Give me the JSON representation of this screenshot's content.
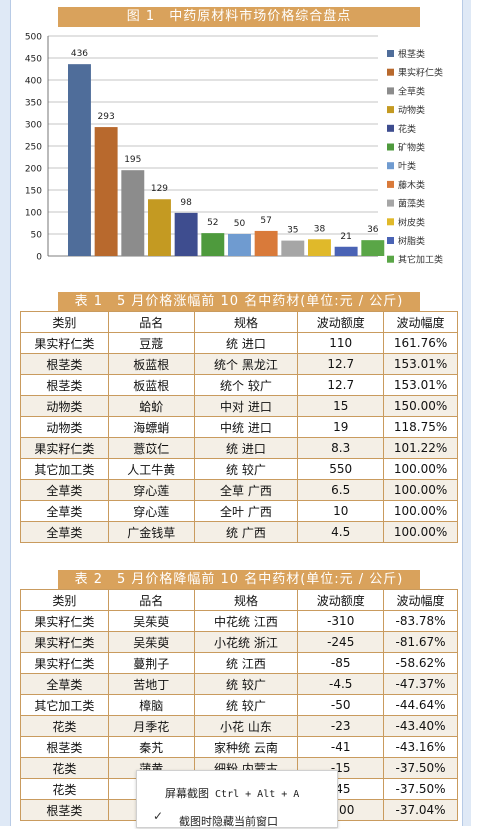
{
  "chart_title": "图 1　中药原材料市场价格综合盘点",
  "chart_data": {
    "type": "bar",
    "title": "图 1　中药原材料市场价格综合盘点",
    "categories": [
      "根茎类",
      "果实籽仁类",
      "全草类",
      "动物类",
      "花类",
      "矿物类",
      "叶类",
      "藤木类",
      "菌藻类",
      "树皮类",
      "树脂类",
      "其它加工类"
    ],
    "values": [
      436,
      293,
      195,
      129,
      98,
      52,
      50,
      57,
      35,
      38,
      21,
      36
    ],
    "colors": [
      "#4f6d9a",
      "#b8692d",
      "#8c8c8c",
      "#c49a22",
      "#3e4d8f",
      "#4e9a3d",
      "#6f9bd0",
      "#d97a3a",
      "#a6a6a6",
      "#e0b92a",
      "#4a63b5",
      "#5aa647"
    ],
    "ylim": [
      0,
      500
    ],
    "yticks": [
      0,
      50,
      100,
      150,
      200,
      250,
      300,
      350,
      400,
      450,
      500
    ],
    "legend_position": "right",
    "xlabel": "",
    "ylabel": ""
  },
  "table1": {
    "title": "表 1　5 月价格涨幅前 10 名中药材(单位:元 / 公斤)",
    "headers": [
      "类别",
      "品名",
      "规格",
      "波动额度",
      "波动幅度"
    ],
    "rows": [
      [
        "果实籽仁类",
        "豆蔻",
        "统 进口",
        "110",
        "161.76%"
      ],
      [
        "根茎类",
        "板蓝根",
        "统个 黑龙江",
        "12.7",
        "153.01%"
      ],
      [
        "根茎类",
        "板蓝根",
        "统个 较广",
        "12.7",
        "153.01%"
      ],
      [
        "动物类",
        "蛤蚧",
        "中对 进口",
        "15",
        "150.00%"
      ],
      [
        "动物类",
        "海螵蛸",
        "中统 进口",
        "19",
        "118.75%"
      ],
      [
        "果实籽仁类",
        "薏苡仁",
        "统 进口",
        "8.3",
        "101.22%"
      ],
      [
        "其它加工类",
        "人工牛黄",
        "统 较广",
        "550",
        "100.00%"
      ],
      [
        "全草类",
        "穿心莲",
        "全草 广西",
        "6.5",
        "100.00%"
      ],
      [
        "全草类",
        "穿心莲",
        "全叶 广西",
        "10",
        "100.00%"
      ],
      [
        "全草类",
        "广金钱草",
        "统 广西",
        "4.5",
        "100.00%"
      ]
    ]
  },
  "table2": {
    "title": "表 2　5 月价格降幅前 10 名中药材(单位:元 / 公斤)",
    "headers": [
      "类别",
      "品名",
      "规格",
      "波动额度",
      "波动幅度"
    ],
    "rows": [
      [
        "果实籽仁类",
        "吴茱萸",
        "中花统 江西",
        "-310",
        "-83.78%"
      ],
      [
        "果实籽仁类",
        "吴茱萸",
        "小花统 浙江",
        "-245",
        "-81.67%"
      ],
      [
        "果实籽仁类",
        "蔓荆子",
        "统 江西",
        "-85",
        "-58.62%"
      ],
      [
        "全草类",
        "苦地丁",
        "统 较广",
        "-4.5",
        "-47.37%"
      ],
      [
        "其它加工类",
        "樟脑",
        "统 较广",
        "-50",
        "-44.64%"
      ],
      [
        "花类",
        "月季花",
        "小花 山东",
        "-23",
        "-43.40%"
      ],
      [
        "根茎类",
        "秦艽",
        "家种统 云南",
        "-41",
        "-43.16%"
      ],
      [
        "花类",
        "蒲黄",
        "细粉 内蒙古",
        "-15",
        "-37.50%"
      ],
      [
        "花类",
        "",
        "",
        "-45",
        "-37.50%"
      ],
      [
        "根茎类",
        "",
        "",
        "-100",
        "-37.04%"
      ]
    ]
  },
  "overlay": {
    "screenshot_label": "屏幕截图",
    "shortcut": "Ctrl + Alt + A",
    "hide_label": "截图时隐藏当前窗口"
  }
}
